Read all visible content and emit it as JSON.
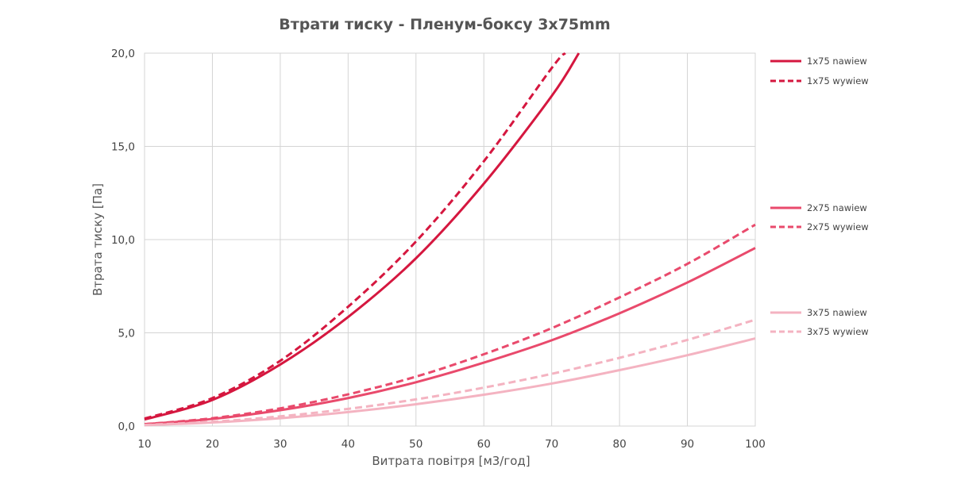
{
  "chart_data": {
    "type": "line",
    "title": "Втрати тиску - Пленум-боксу 3x75mm",
    "xlabel": "Витрата повітря [м3/год]",
    "ylabel": "Втрата тиску [Па]",
    "xlim": [
      10,
      100
    ],
    "ylim": [
      0,
      20
    ],
    "x_ticks": [
      10,
      20,
      30,
      40,
      50,
      60,
      70,
      80,
      90,
      100
    ],
    "y_ticks": [
      0,
      5,
      10,
      15,
      20
    ],
    "y_tick_labels": [
      "0,0",
      "5,0",
      "10,0",
      "15,0",
      "20,0"
    ],
    "grid": true,
    "legend_position": "right",
    "series": [
      {
        "name": "1x75 nawiew",
        "color": "#d5173f",
        "dash": "solid",
        "x": [
          10,
          20,
          30,
          40,
          50,
          60,
          70,
          74
        ],
        "y": [
          0.35,
          1.4,
          3.3,
          5.85,
          9.0,
          13.0,
          17.7,
          20.0
        ]
      },
      {
        "name": "1x75 wywiew",
        "color": "#d5173f",
        "dash": "dashed",
        "x": [
          10,
          20,
          30,
          40,
          50,
          60,
          70,
          72
        ],
        "y": [
          0.4,
          1.5,
          3.5,
          6.4,
          9.9,
          14.2,
          19.2,
          20.0
        ]
      },
      {
        "name": "2x75 nawiew",
        "color": "#e94a6c",
        "dash": "solid",
        "x": [
          10,
          20,
          30,
          40,
          50,
          60,
          70,
          80,
          90,
          100
        ],
        "y": [
          0.1,
          0.38,
          0.85,
          1.5,
          2.35,
          3.4,
          4.6,
          6.05,
          7.7,
          9.55
        ]
      },
      {
        "name": "2x75 wywiew",
        "color": "#e94a6c",
        "dash": "dashed",
        "x": [
          10,
          20,
          30,
          40,
          50,
          60,
          70,
          80,
          90,
          100
        ],
        "y": [
          0.1,
          0.42,
          0.95,
          1.7,
          2.65,
          3.85,
          5.25,
          6.9,
          8.7,
          10.8
        ]
      },
      {
        "name": "3x75 nawiew",
        "color": "#f4b3c1",
        "dash": "solid",
        "x": [
          10,
          20,
          30,
          40,
          50,
          60,
          70,
          80,
          90,
          100
        ],
        "y": [
          0.05,
          0.19,
          0.42,
          0.75,
          1.17,
          1.68,
          2.28,
          3.0,
          3.8,
          4.7
        ]
      },
      {
        "name": "3x75 wywiew",
        "color": "#f4b3c1",
        "dash": "dashed",
        "x": [
          10,
          20,
          30,
          40,
          50,
          60,
          70,
          80,
          90,
          100
        ],
        "y": [
          0.06,
          0.23,
          0.52,
          0.92,
          1.43,
          2.06,
          2.8,
          3.66,
          4.62,
          5.7
        ]
      }
    ]
  }
}
